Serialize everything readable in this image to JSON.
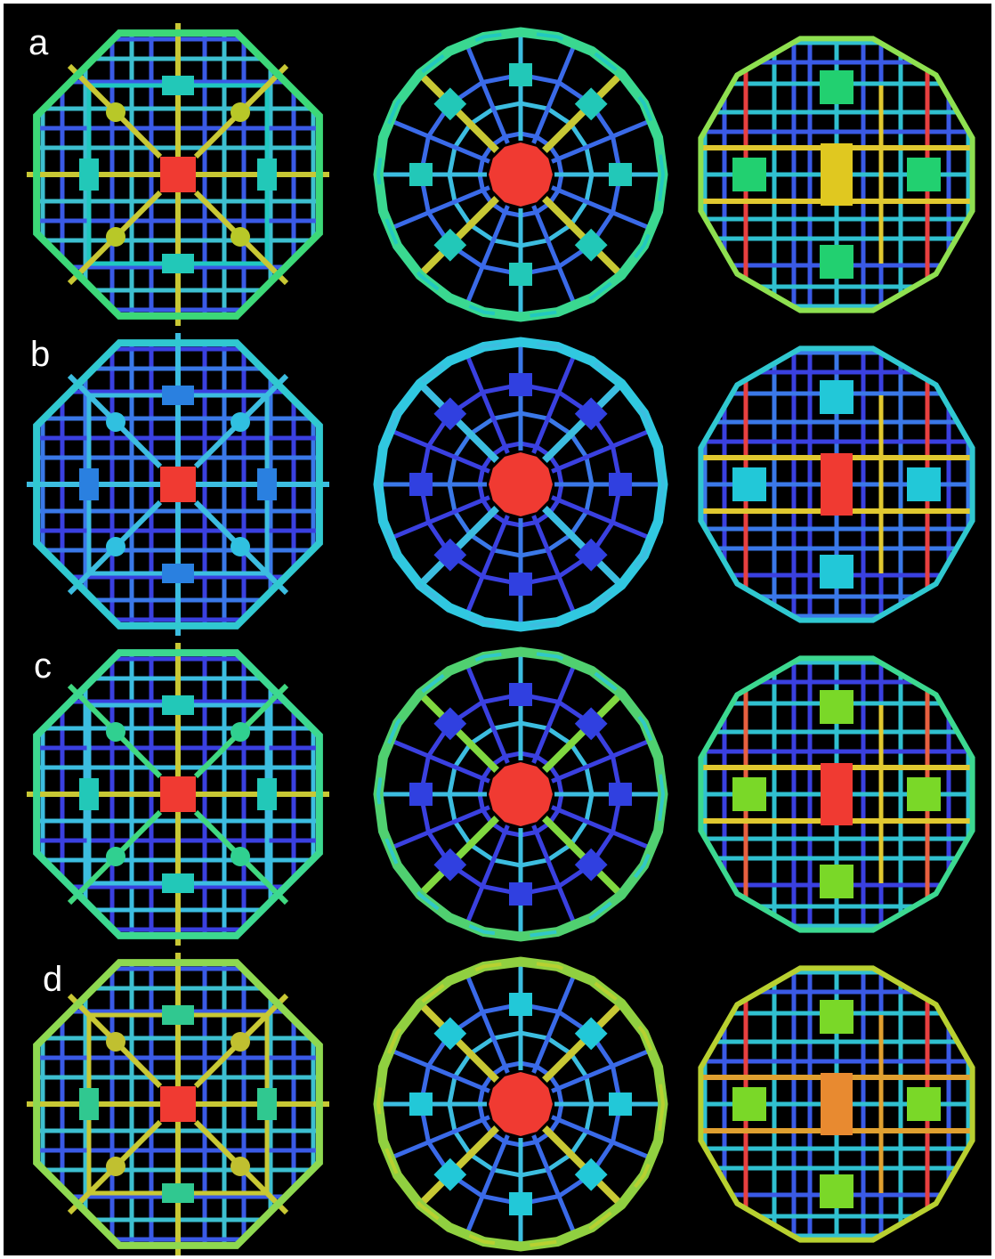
{
  "figure": {
    "rows": [
      {
        "label": "a",
        "octagon": {
          "frame": "#3cd878",
          "ring": "#20c8c0",
          "diag": "#c8c834",
          "grid_a": "#3a5ae6",
          "grid_b": "#3dbfd0",
          "center": "#f03a32",
          "side_boxes": "#22c8b8",
          "corner_nodes": "#b8c828",
          "axis": "#c8c834"
        },
        "circle": {
          "frame": "#3ad890",
          "frame_b": "#22c8c0",
          "spoke_a": "#c8c834",
          "spoke_b": "#3cbde0",
          "inner": "#3a6ae8",
          "center": "#f03a32",
          "boxes": "#22c8b8"
        },
        "dodeca": {
          "frame": "#8ee050",
          "grid_a": "#3a5ae6",
          "grid_b": "#30c0d0",
          "accent_a": "#e84040",
          "accent_b": "#e0c830",
          "center": "#e0c820",
          "boxes": "#22d070"
        }
      },
      {
        "label": "b",
        "octagon": {
          "frame": "#30c8d0",
          "ring": "#3cbde0",
          "diag": "#3cbde0",
          "grid_a": "#3a40e0",
          "grid_b": "#3a78e8",
          "center": "#f03a32",
          "side_boxes": "#2a80e0",
          "corner_nodes": "#30c0e0",
          "axis": "#3cbde0"
        },
        "circle": {
          "frame": "#30c8e0",
          "frame_b": "#3cbde0",
          "spoke_a": "#3cbde0",
          "spoke_b": "#3a78e8",
          "inner": "#3a40e0",
          "center": "#f03a32",
          "boxes": "#3040e0"
        },
        "dodeca": {
          "frame": "#30c8d0",
          "grid_a": "#3a40e0",
          "grid_b": "#3a78e8",
          "accent_a": "#e84040",
          "accent_b": "#e0c830",
          "center": "#f03a32",
          "boxes": "#22c8d8"
        }
      },
      {
        "label": "c",
        "octagon": {
          "frame": "#3cd890",
          "ring": "#3cbde0",
          "diag": "#40d880",
          "grid_a": "#3a40e0",
          "grid_b": "#3cbde0",
          "center": "#f03a32",
          "side_boxes": "#22c8b8",
          "corner_nodes": "#30d090",
          "axis": "#c8c834"
        },
        "circle": {
          "frame": "#50d070",
          "frame_b": "#30c8c8",
          "spoke_a": "#80d840",
          "spoke_b": "#3cbde0",
          "inner": "#3a40e0",
          "center": "#f03a32",
          "boxes": "#3040e0"
        },
        "dodeca": {
          "frame": "#3cd890",
          "grid_a": "#3a40e0",
          "grid_b": "#30c0d0",
          "accent_a": "#e86040",
          "accent_b": "#e0c830",
          "center": "#f03a32",
          "boxes": "#7ad828"
        }
      },
      {
        "label": "d",
        "octagon": {
          "frame": "#8ed850",
          "ring": "#c8c834",
          "diag": "#c8c834",
          "grid_a": "#3a5ae6",
          "grid_b": "#3dbfd0",
          "center": "#f03a32",
          "side_boxes": "#30c890",
          "corner_nodes": "#c0c030",
          "axis": "#c8c834"
        },
        "circle": {
          "frame": "#90d040",
          "frame_b": "#b8d030",
          "spoke_a": "#c8c834",
          "spoke_b": "#3cbde0",
          "inner": "#3a6ae8",
          "center": "#f03a32",
          "boxes": "#22c8d8"
        },
        "dodeca": {
          "frame": "#b8d030",
          "grid_a": "#3a5ae6",
          "grid_b": "#30c0d0",
          "accent_a": "#e84040",
          "accent_b": "#e0a030",
          "center": "#e88a30",
          "boxes": "#7ad828"
        }
      }
    ]
  }
}
